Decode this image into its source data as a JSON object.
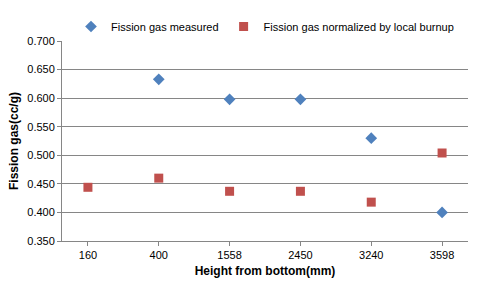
{
  "chart_data": {
    "type": "scatter",
    "x_label": "Height from bottom(mm)",
    "y_label": "Fission gas(cc/g)",
    "categories": [
      "160",
      "400",
      "1558",
      "2450",
      "3240",
      "3598"
    ],
    "series": [
      {
        "name": "Fission gas measured",
        "color": "#4f81bd",
        "marker": "diamond",
        "values": [
          null,
          0.633,
          0.598,
          0.598,
          0.53,
          0.4
        ]
      },
      {
        "name": "Fission gas normalized by local burnup",
        "color": "#c0504d",
        "marker": "square",
        "values": [
          0.444,
          0.46,
          0.437,
          0.437,
          0.418,
          0.504
        ]
      }
    ],
    "ylim": [
      0.35,
      0.7
    ],
    "yticks": [
      {
        "value": 0.35,
        "label": "0.350"
      },
      {
        "value": 0.4,
        "label": "0.400"
      },
      {
        "value": 0.45,
        "label": "0.450"
      },
      {
        "value": 0.5,
        "label": "0.500"
      },
      {
        "value": 0.55,
        "label": "0.550"
      },
      {
        "value": 0.6,
        "label": "0.600"
      },
      {
        "value": 0.65,
        "label": "0.650"
      },
      {
        "value": 0.7,
        "label": "0.700"
      }
    ],
    "grid": true,
    "legend": "top"
  }
}
